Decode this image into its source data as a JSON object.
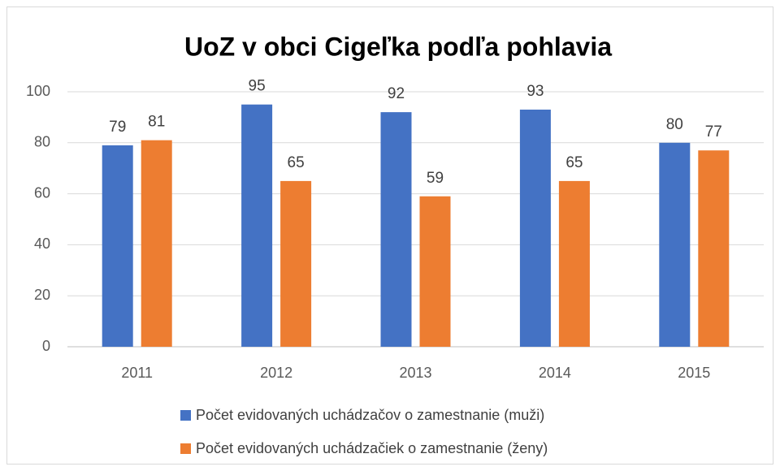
{
  "chart_data": {
    "type": "bar",
    "title": "UoZ v obci Cigeľka podľa pohlavia",
    "categories": [
      "2011",
      "2012",
      "2013",
      "2014",
      "2015"
    ],
    "series": [
      {
        "name": "Počet evidovaných uchádzačov o zamestnanie (muži)",
        "color": "#4472c4",
        "values": [
          79,
          95,
          92,
          93,
          80
        ]
      },
      {
        "name": "Počet evidovaných uchádzačiek o zamestnanie (ženy)",
        "color": "#ed7d31",
        "values": [
          81,
          65,
          59,
          65,
          77
        ]
      }
    ],
    "ylim": [
      0,
      100
    ],
    "yticks": [
      0,
      20,
      40,
      60,
      80,
      100
    ],
    "grid": true,
    "legend": "bottom"
  }
}
